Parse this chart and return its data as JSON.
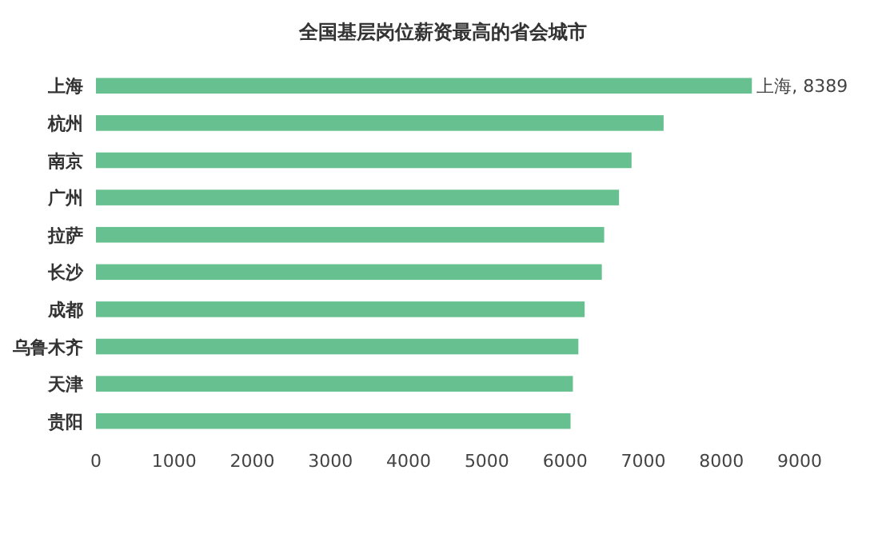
{
  "chart_data": {
    "type": "bar",
    "orientation": "horizontal",
    "title": "全国基层岗位薪资最高的省会城市",
    "categories": [
      "上海",
      "杭州",
      "南京",
      "广州",
      "拉萨",
      "长沙",
      "成都",
      "乌鲁木齐",
      "天津",
      "贵阳"
    ],
    "values": [
      8389,
      7260,
      6850,
      6690,
      6500,
      6470,
      6250,
      6170,
      6100,
      6070
    ],
    "value_labels": [
      "上海, 8389",
      null,
      null,
      null,
      null,
      null,
      null,
      null,
      null,
      null
    ],
    "color": "#66c08f",
    "xlim": [
      0,
      9000
    ],
    "xticks": [
      0,
      1000,
      2000,
      3000,
      4000,
      5000,
      6000,
      7000,
      8000,
      9000
    ],
    "grid": false
  }
}
